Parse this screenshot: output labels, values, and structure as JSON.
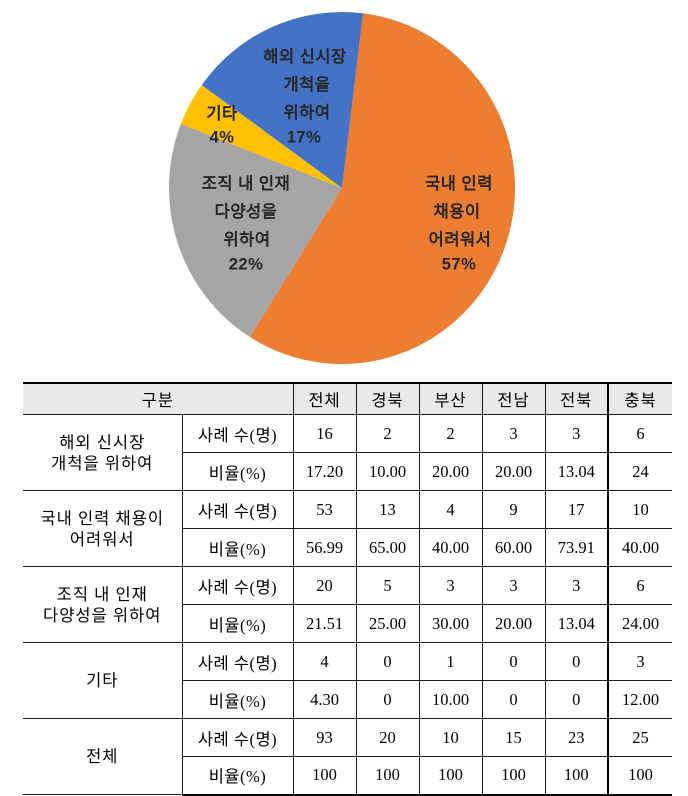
{
  "chart_data": {
    "type": "pie",
    "title": "",
    "legend_position": "none",
    "labels_inside_slices": true,
    "colors": {
      "orange": "#ED7D31",
      "gray": "#A5A5A5",
      "yellow": "#FFC000",
      "blue": "#4472C4"
    },
    "slices": [
      {
        "label": "국내 인력 채용이 어려워서",
        "value": 57,
        "color": "#ED7D31",
        "label_lines": [
          "국내 인력",
          "채용이",
          "어려워서",
          "57%"
        ]
      },
      {
        "label": "조직 내 인재 다양성을 위하여",
        "value": 22,
        "color": "#A5A5A5",
        "label_lines": [
          "조직 내 인재",
          "다양성을",
          "위하여",
          "22%"
        ]
      },
      {
        "label": "기타",
        "value": 4,
        "color": "#FFC000",
        "label_lines": [
          "기타",
          "4%"
        ]
      },
      {
        "label": "해외 신시장 개척을 위하여",
        "value": 17,
        "color": "#4472C4",
        "label_lines": [
          "해외 신시장",
          "개척을",
          "위하여",
          "17%"
        ]
      }
    ]
  },
  "table": {
    "header": {
      "group_label": "구분",
      "region_labels": [
        "전체",
        "경북",
        "부산",
        "전남",
        "전북",
        "충북"
      ]
    },
    "metric_labels": [
      "사례 수(명)",
      "비율(%)"
    ],
    "groups": [
      {
        "category_lines": [
          "해외 신시장",
          "개척을 위하여"
        ],
        "counts": [
          "16",
          "2",
          "2",
          "3",
          "3",
          "6"
        ],
        "ratios": [
          "17.20",
          "10.00",
          "20.00",
          "20.00",
          "13.04",
          "24"
        ]
      },
      {
        "category_lines": [
          "국내 인력 채용이",
          "어려워서"
        ],
        "counts": [
          "53",
          "13",
          "4",
          "9",
          "17",
          "10"
        ],
        "ratios": [
          "56.99",
          "65.00",
          "40.00",
          "60.00",
          "73.91",
          "40.00"
        ]
      },
      {
        "category_lines": [
          "조직 내 인재",
          "다양성을 위하여"
        ],
        "counts": [
          "20",
          "5",
          "3",
          "3",
          "3",
          "6"
        ],
        "ratios": [
          "21.51",
          "25.00",
          "30.00",
          "20.00",
          "13.04",
          "24.00"
        ]
      },
      {
        "category_lines": [
          "기타"
        ],
        "counts": [
          "4",
          "0",
          "1",
          "0",
          "0",
          "3"
        ],
        "ratios": [
          "4.30",
          "0",
          "10.00",
          "0",
          "0",
          "12.00"
        ]
      },
      {
        "category_lines": [
          "전체"
        ],
        "counts": [
          "93",
          "20",
          "10",
          "15",
          "23",
          "25"
        ],
        "ratios": [
          "100",
          "100",
          "100",
          "100",
          "100",
          "100"
        ]
      }
    ]
  }
}
